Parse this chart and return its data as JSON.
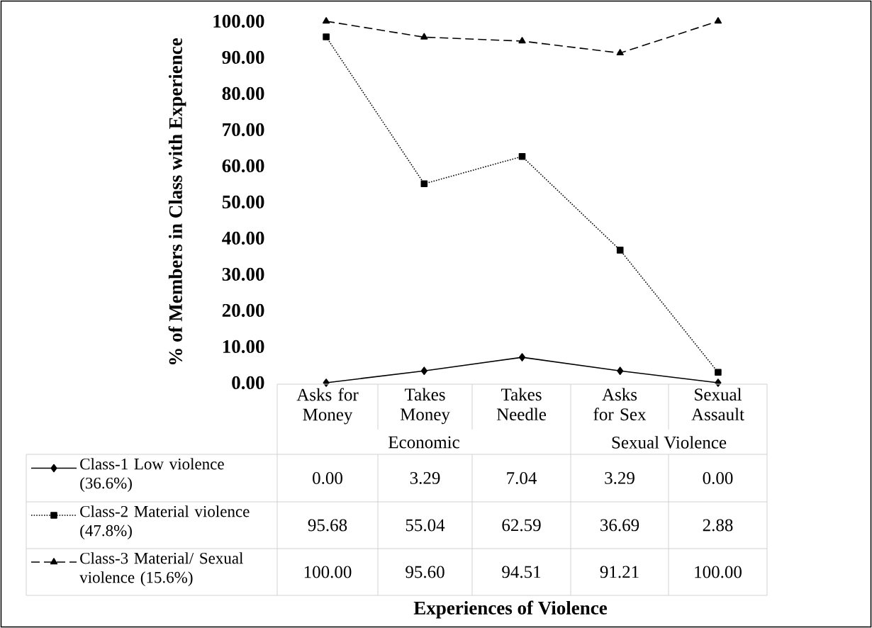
{
  "chart_data": {
    "type": "line",
    "categories": [
      "Asks for Money",
      "Takes Money",
      "Takes Needle",
      "Asks for Sex",
      "Sexual Assault"
    ],
    "series": [
      {
        "name": "Class-1 Low violence (36.6%)",
        "color": "#000000",
        "marker": "diamond",
        "line_style": "solid",
        "values": [
          0.0,
          3.29,
          7.04,
          3.29,
          0.0
        ],
        "value_labels": [
          "0.00",
          "3.29",
          "7.04",
          "3.29",
          "0.00"
        ]
      },
      {
        "name": "Class-2 Material violence (47.8%)",
        "color": "#000000",
        "marker": "square",
        "line_style": "dotted",
        "values": [
          95.68,
          55.04,
          62.59,
          36.69,
          2.88
        ],
        "value_labels": [
          "95.68",
          "55.04",
          "62.59",
          "36.69",
          "2.88"
        ]
      },
      {
        "name": "Class-3 Material/ Sexual violence (15.6%)",
        "color": "#000000",
        "marker": "triangle",
        "line_style": "dashed",
        "values": [
          100.0,
          95.6,
          94.51,
          91.21,
          100.0
        ],
        "value_labels": [
          "100.00",
          "95.60",
          "94.51",
          "91.21",
          "100.00"
        ]
      }
    ],
    "ylabel": "% of Members in Class with Experience",
    "ylim": [
      0,
      100
    ],
    "yticks": [
      {
        "value": 0,
        "label": "0.00"
      },
      {
        "value": 10,
        "label": "10.00"
      },
      {
        "value": 20,
        "label": "20.00"
      },
      {
        "value": 30,
        "label": "30.00"
      },
      {
        "value": 40,
        "label": "40.00"
      },
      {
        "value": 50,
        "label": "50.00"
      },
      {
        "value": 60,
        "label": "60.00"
      },
      {
        "value": 70,
        "label": "70.00"
      },
      {
        "value": 80,
        "label": "80.00"
      },
      {
        "value": 90,
        "label": "90.00"
      },
      {
        "value": 100,
        "label": "100.00"
      }
    ],
    "annotations": [
      "Economic",
      "Sexual Violence",
      "Experiences of Violence"
    ],
    "legend": "bottom",
    "grid": false
  }
}
